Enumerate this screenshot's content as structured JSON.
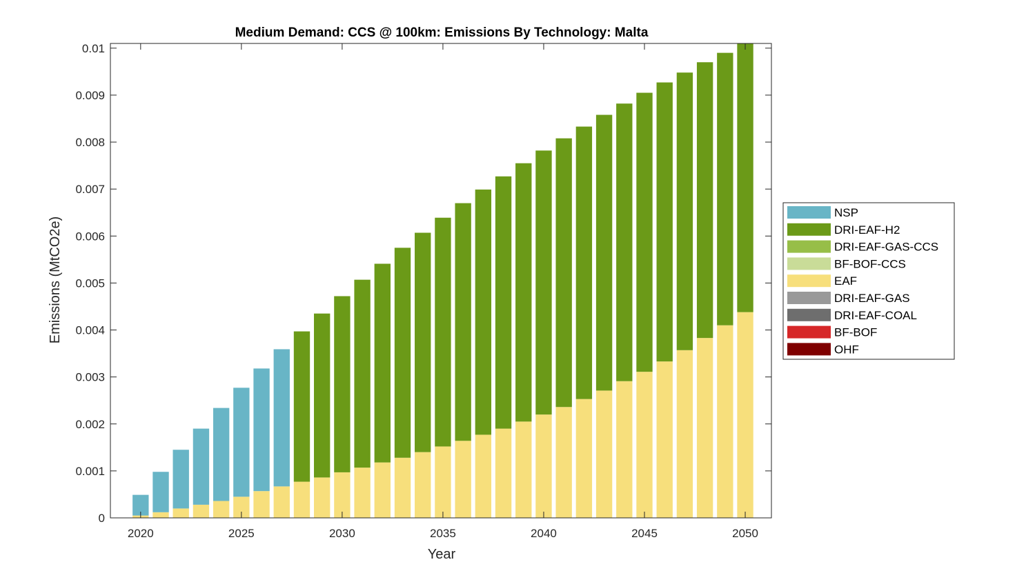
{
  "chart_data": {
    "type": "bar",
    "stacked": true,
    "title": "Medium Demand: CCS @ 100km: Emissions By Technology: Malta",
    "xlabel": "Year",
    "ylabel": "Emissions (MtCO2e)",
    "xlim": [
      2018.5,
      2051.3
    ],
    "ylim": [
      0,
      0.0101
    ],
    "xticks": [
      2020,
      2025,
      2030,
      2035,
      2040,
      2045,
      2050
    ],
    "xtick_labels": [
      "2020",
      "2025",
      "2030",
      "2035",
      "2040",
      "2045",
      "2050"
    ],
    "yticks": [
      0,
      0.001,
      0.002,
      0.003,
      0.004,
      0.005,
      0.006,
      0.007,
      0.008,
      0.009,
      0.01
    ],
    "ytick_labels": [
      "0",
      "0.001",
      "0.002",
      "0.003",
      "0.004",
      "0.005",
      "0.006",
      "0.007",
      "0.008",
      "0.009",
      "0.01"
    ],
    "legend_position": "right-outside",
    "categories": [
      2020,
      2021,
      2022,
      2023,
      2024,
      2025,
      2026,
      2027,
      2028,
      2029,
      2030,
      2031,
      2032,
      2033,
      2034,
      2035,
      2036,
      2037,
      2038,
      2039,
      2040,
      2041,
      2042,
      2043,
      2044,
      2045,
      2046,
      2047,
      2048,
      2049,
      2050
    ],
    "series": [
      {
        "name": "OHF",
        "color": "#7f0000",
        "values": [
          0,
          0,
          0,
          0,
          0,
          0,
          0,
          0,
          0,
          0,
          0,
          0,
          0,
          0,
          0,
          0,
          0,
          0,
          0,
          0,
          0,
          0,
          0,
          0,
          0,
          0,
          0,
          0,
          0,
          0,
          0
        ]
      },
      {
        "name": "BF-BOF",
        "color": "#d62728",
        "values": [
          0,
          0,
          0,
          0,
          0,
          0,
          0,
          0,
          0,
          0,
          0,
          0,
          0,
          0,
          0,
          0,
          0,
          0,
          0,
          0,
          0,
          0,
          0,
          0,
          0,
          0,
          0,
          0,
          0,
          0,
          0
        ]
      },
      {
        "name": "DRI-EAF-COAL",
        "color": "#6e6e6e",
        "values": [
          0,
          0,
          0,
          0,
          0,
          0,
          0,
          0,
          0,
          0,
          0,
          0,
          0,
          0,
          0,
          0,
          0,
          0,
          0,
          0,
          0,
          0,
          0,
          0,
          0,
          0,
          0,
          0,
          0,
          0,
          0
        ]
      },
      {
        "name": "DRI-EAF-GAS",
        "color": "#999999",
        "values": [
          0,
          0,
          0,
          0,
          0,
          0,
          0,
          0,
          0,
          0,
          0,
          0,
          0,
          0,
          0,
          0,
          0,
          0,
          0,
          0,
          0,
          0,
          0,
          0,
          0,
          0,
          0,
          0,
          0,
          0,
          0
        ]
      },
      {
        "name": "EAF",
        "color": "#f7df7c",
        "values": [
          5e-05,
          0.00012,
          0.0002,
          0.00028,
          0.00036,
          0.00045,
          0.00057,
          0.00067,
          0.00077,
          0.00086,
          0.00097,
          0.00107,
          0.00118,
          0.00128,
          0.0014,
          0.00152,
          0.00164,
          0.00177,
          0.0019,
          0.00205,
          0.0022,
          0.00236,
          0.00253,
          0.00271,
          0.00291,
          0.00311,
          0.00333,
          0.00357,
          0.00383,
          0.0041,
          0.00438
        ]
      },
      {
        "name": "BF-BOF-CCS",
        "color": "#c9dc98",
        "values": [
          0,
          0,
          0,
          0,
          0,
          0,
          0,
          0,
          0,
          0,
          0,
          0,
          0,
          0,
          0,
          0,
          0,
          0,
          0,
          0,
          0,
          0,
          0,
          0,
          0,
          0,
          0,
          0,
          0,
          0,
          0
        ]
      },
      {
        "name": "DRI-EAF-GAS-CCS",
        "color": "#97be48",
        "values": [
          0,
          0,
          0,
          0,
          0,
          0,
          0,
          0,
          0,
          0,
          0,
          0,
          0,
          0,
          0,
          0,
          0,
          0,
          0,
          0,
          0,
          0,
          0,
          0,
          0,
          0,
          0,
          0,
          0,
          0,
          0
        ]
      },
      {
        "name": "DRI-EAF-H2",
        "color": "#6b9a18",
        "values": [
          0,
          0,
          0,
          0,
          0,
          0,
          0,
          0,
          0.0032,
          0.00349,
          0.00375,
          0.004,
          0.00423,
          0.00447,
          0.00467,
          0.00487,
          0.00506,
          0.00522,
          0.00537,
          0.0055,
          0.00562,
          0.00572,
          0.0058,
          0.00587,
          0.00591,
          0.00594,
          0.00594,
          0.00591,
          0.00587,
          0.0058,
          0.00572
        ]
      },
      {
        "name": "NSP",
        "color": "#68b5c6",
        "values": [
          0.00044,
          0.00086,
          0.00125,
          0.00162,
          0.00198,
          0.00232,
          0.00261,
          0.00292,
          0,
          0,
          0,
          0,
          0,
          0,
          0,
          0,
          0,
          0,
          0,
          0,
          0,
          0,
          0,
          0,
          0,
          0,
          0,
          0,
          0,
          0,
          0
        ]
      }
    ],
    "legend_order": [
      "NSP",
      "DRI-EAF-H2",
      "DRI-EAF-GAS-CCS",
      "BF-BOF-CCS",
      "EAF",
      "DRI-EAF-GAS",
      "DRI-EAF-COAL",
      "BF-BOF",
      "OHF"
    ]
  }
}
